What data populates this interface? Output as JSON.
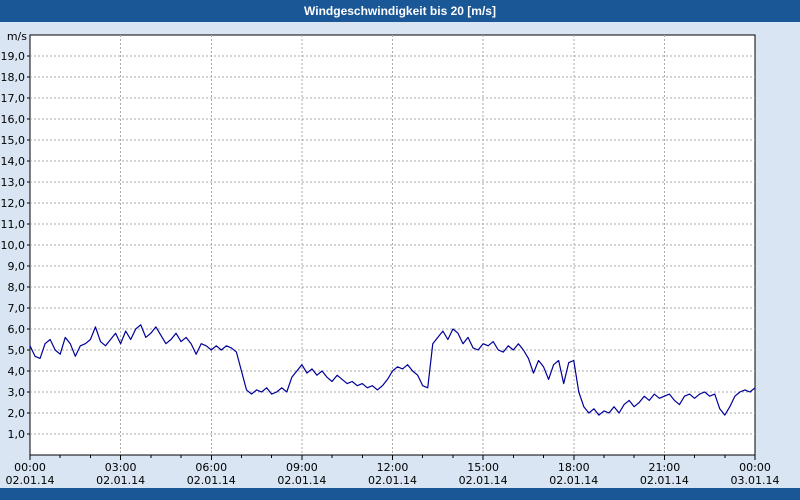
{
  "header": {
    "title": "Windgeschwindigkeit bis 20 [m/s]",
    "bar_color": "#1a5796"
  },
  "chart_data": {
    "type": "line",
    "title": "Windgeschwindigkeit bis 20 [m/s]",
    "unit_label": "m/s",
    "ylim": [
      0,
      20
    ],
    "y_tick_step": 1,
    "y_tick_labels": [
      "1,0",
      "2,0",
      "3,0",
      "4,0",
      "5,0",
      "6,0",
      "7,0",
      "8,0",
      "9,0",
      "10,0",
      "11,0",
      "12,0",
      "13,0",
      "14,0",
      "15,0",
      "16,0",
      "17,0",
      "18,0",
      "19,0"
    ],
    "x_hours_range": [
      0,
      24
    ],
    "x_ticks": [
      {
        "hour": 0,
        "time": "00:00",
        "date": "02.01.14"
      },
      {
        "hour": 3,
        "time": "03:00",
        "date": "02.01.14"
      },
      {
        "hour": 6,
        "time": "06:00",
        "date": "02.01.14"
      },
      {
        "hour": 9,
        "time": "09:00",
        "date": "02.01.14"
      },
      {
        "hour": 12,
        "time": "12:00",
        "date": "02.01.14"
      },
      {
        "hour": 15,
        "time": "15:00",
        "date": "02.01.14"
      },
      {
        "hour": 18,
        "time": "18:00",
        "date": "02.01.14"
      },
      {
        "hour": 21,
        "time": "21:00",
        "date": "02.01.14"
      },
      {
        "hour": 24,
        "time": "00:00",
        "date": "03.01.14"
      }
    ],
    "grid": {
      "dashed": true,
      "color": "#a8a8a8"
    },
    "plot_background": "#ffffff",
    "plot_border_color": "#000000",
    "series": [
      {
        "name": "Windgeschwindigkeit",
        "color": "#000099",
        "start_hour": 0,
        "step_minutes": 10,
        "values": [
          5.2,
          4.7,
          4.6,
          5.3,
          5.5,
          5.0,
          4.8,
          5.6,
          5.3,
          4.7,
          5.2,
          5.3,
          5.5,
          6.1,
          5.4,
          5.2,
          5.5,
          5.8,
          5.3,
          5.9,
          5.5,
          6.0,
          6.2,
          5.6,
          5.8,
          6.1,
          5.7,
          5.3,
          5.5,
          5.8,
          5.4,
          5.6,
          5.3,
          4.8,
          5.3,
          5.2,
          5.0,
          5.2,
          5.0,
          5.2,
          5.1,
          4.9,
          4.0,
          3.1,
          2.9,
          3.1,
          3.0,
          3.2,
          2.9,
          3.0,
          3.2,
          3.0,
          3.7,
          4.0,
          4.3,
          3.9,
          4.1,
          3.8,
          4.0,
          3.7,
          3.5,
          3.8,
          3.6,
          3.4,
          3.5,
          3.3,
          3.4,
          3.2,
          3.3,
          3.1,
          3.3,
          3.6,
          4.0,
          4.2,
          4.1,
          4.3,
          4.0,
          3.8,
          3.3,
          3.2,
          5.3,
          5.6,
          5.9,
          5.5,
          6.0,
          5.8,
          5.3,
          5.6,
          5.1,
          5.0,
          5.3,
          5.2,
          5.4,
          5.0,
          4.9,
          5.2,
          5.0,
          5.3,
          5.0,
          4.6,
          3.9,
          4.5,
          4.2,
          3.6,
          4.3,
          4.5,
          3.4,
          4.4,
          4.5,
          3.0,
          2.3,
          2.0,
          2.2,
          1.9,
          2.1,
          2.0,
          2.3,
          2.0,
          2.4,
          2.6,
          2.3,
          2.5,
          2.8,
          2.6,
          2.9,
          2.7,
          2.8,
          2.9,
          2.6,
          2.4,
          2.8,
          2.9,
          2.7,
          2.9,
          3.0,
          2.8,
          2.9,
          2.2,
          1.9,
          2.3,
          2.8,
          3.0,
          3.1,
          3.0,
          3.2
        ]
      }
    ]
  }
}
